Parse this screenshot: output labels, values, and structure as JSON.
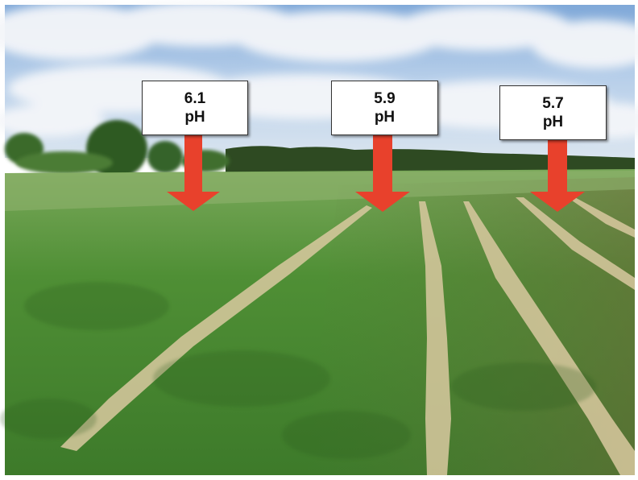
{
  "labels": [
    {
      "value": "6.1",
      "unit": "pH"
    },
    {
      "value": "5.9",
      "unit": "pH"
    },
    {
      "value": "5.7",
      "unit": "pH"
    }
  ],
  "colors": {
    "arrow": "#e8412c",
    "sky": "#a9c6e8",
    "field": "#4f8f35"
  }
}
